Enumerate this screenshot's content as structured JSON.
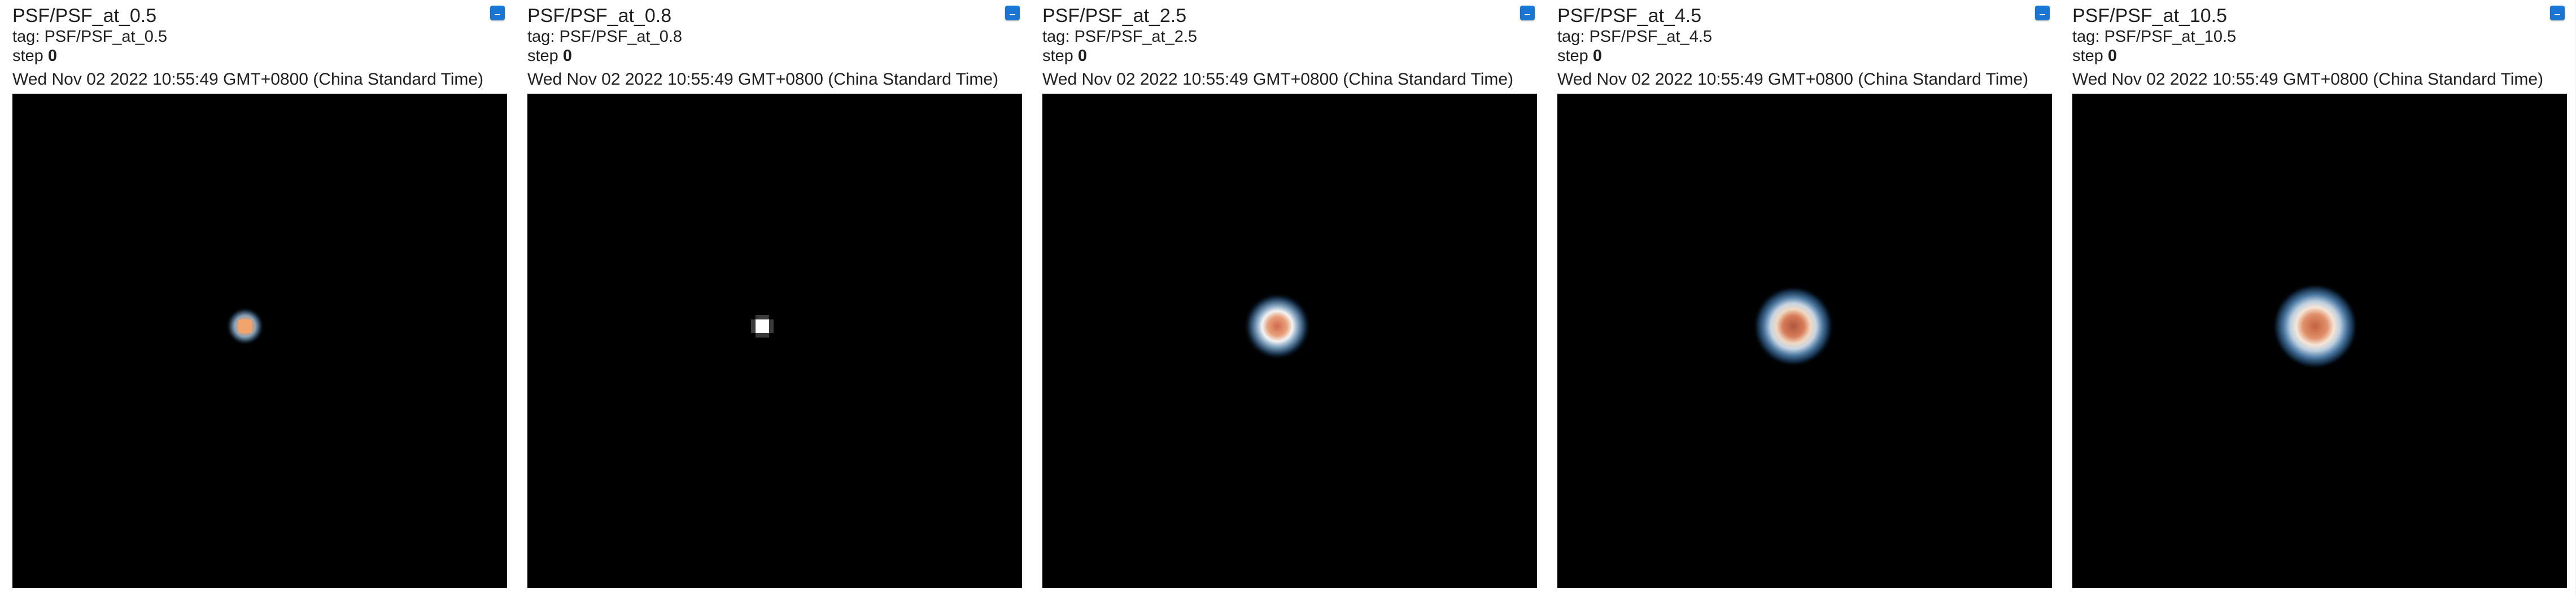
{
  "cards": [
    {
      "title": "PSF/PSF_at_0.5",
      "tag_prefix": "tag: ",
      "tag": "PSF/PSF_at_0.5",
      "step_prefix": "step ",
      "step": "0",
      "timestamp": "Wed Nov 02 2022 10:55:49 GMT+0800 (China Standard Time)",
      "image_icon": "psf-image",
      "expand_icon": "expand-icon"
    },
    {
      "title": "PSF/PSF_at_0.8",
      "tag_prefix": "tag: ",
      "tag": "PSF/PSF_at_0.8",
      "step_prefix": "step ",
      "step": "0",
      "timestamp": "Wed Nov 02 2022 10:55:49 GMT+0800 (China Standard Time)",
      "image_icon": "psf-image",
      "expand_icon": "expand-icon"
    },
    {
      "title": "PSF/PSF_at_2.5",
      "tag_prefix": "tag: ",
      "tag": "PSF/PSF_at_2.5",
      "step_prefix": "step ",
      "step": "0",
      "timestamp": "Wed Nov 02 2022 10:55:49 GMT+0800 (China Standard Time)",
      "image_icon": "psf-image",
      "expand_icon": "expand-icon"
    },
    {
      "title": "PSF/PSF_at_4.5",
      "tag_prefix": "tag: ",
      "tag": "PSF/PSF_at_4.5",
      "step_prefix": "step ",
      "step": "0",
      "timestamp": "Wed Nov 02 2022 10:55:49 GMT+0800 (China Standard Time)",
      "image_icon": "psf-image",
      "expand_icon": "expand-icon"
    },
    {
      "title": "PSF/PSF_at_10.5",
      "tag_prefix": "tag: ",
      "tag": "PSF/PSF_at_10.5",
      "step_prefix": "step ",
      "step": "0",
      "timestamp": "Wed Nov 02 2022 10:55:49 GMT+0800 (China Standard Time)",
      "image_icon": "psf-image",
      "expand_icon": "expand-icon"
    }
  ],
  "colors": {
    "button": "#1976d2",
    "image_background": "#000000",
    "card_background": "#ffffff",
    "page_background": "#f5f5f5"
  }
}
